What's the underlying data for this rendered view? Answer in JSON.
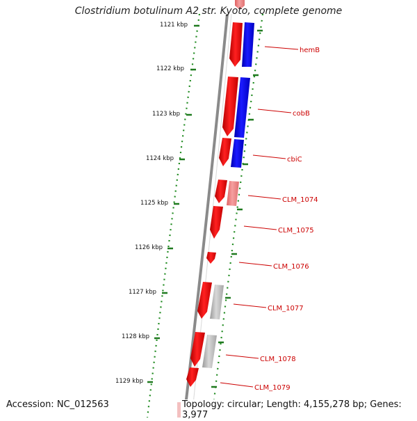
{
  "title": "Clostridium botulinum A2 str. Kyoto, complete genome",
  "footer": {
    "accession": "Accession: NC_012563",
    "summary": "Topology: circular; Length: 4,155,278 bp; Genes: 3,977"
  },
  "colors": {
    "gene_forward": "#ee1111",
    "gene_reverse": "#1010ee",
    "gene_pseudo": "#bbbbbb",
    "gene_partial": "#ee7777",
    "ticks": "#227722",
    "labels": "#cc0000",
    "backbone": "#888888"
  },
  "ruler": {
    "ticks": [
      "1121 kbp",
      "1122 kbp",
      "1123 kbp",
      "1124 kbp",
      "1125 kbp",
      "1126 kbp",
      "1127 kbp",
      "1128 kbp",
      "1129 kbp"
    ]
  },
  "genes": [
    {
      "label": "hemB"
    },
    {
      "label": "cobB"
    },
    {
      "label": "cbiC"
    },
    {
      "label": "CLM_1074"
    },
    {
      "label": "CLM_1075"
    },
    {
      "label": "CLM_1076"
    },
    {
      "label": "CLM_1077"
    },
    {
      "label": "CLM_1078"
    },
    {
      "label": "CLM_1079"
    }
  ]
}
